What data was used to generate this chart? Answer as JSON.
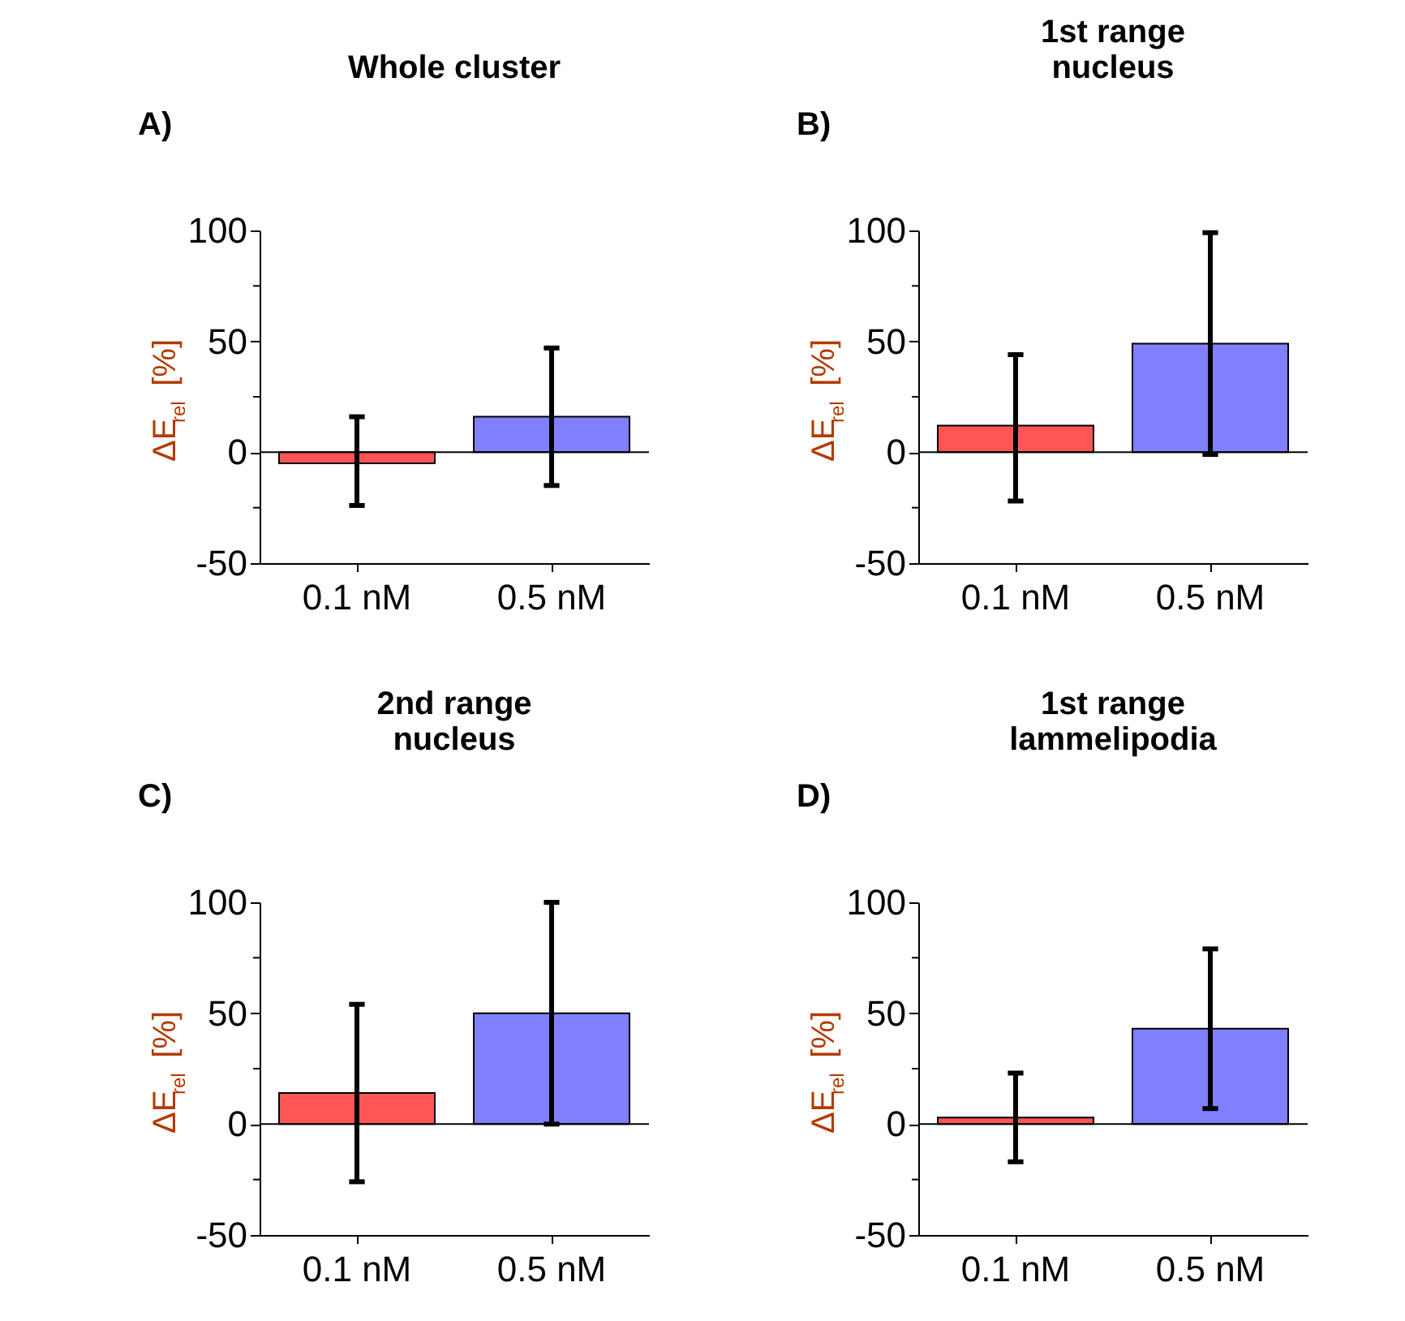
{
  "chart_data": [
    {
      "type": "bar",
      "title": "Whole cluster",
      "annotations": [
        "A)"
      ],
      "ylabel": "ΔE$_{rel}$ [%]",
      "categories": [
        "0.1 nM",
        "0.5 nM"
      ],
      "values": [
        -5,
        16
      ],
      "colors": [
        "#ff5555",
        "#8080ff"
      ],
      "errors": [
        [
          -24,
          16
        ],
        [
          -15,
          47
        ]
      ],
      "ylim": [
        -50,
        100
      ],
      "yticks": [
        -50,
        {
          "value": -25,
          "label": null
        },
        0,
        {
          "value": 25,
          "label": null
        },
        50,
        {
          "value": 75,
          "label": null
        },
        100
      ],
      "ref_lines": [
        {
          "axis": "y",
          "value": 0
        }
      ]
    },
    {
      "type": "bar",
      "title": "1st range\nnucleus",
      "annotations": [
        "B)"
      ],
      "ylabel": "ΔE$_{rel}$ [%]",
      "categories": [
        "0.1 nM",
        "0.5 nM"
      ],
      "values": [
        12,
        49
      ],
      "colors": [
        "#ff5555",
        "#8080ff"
      ],
      "errors": [
        [
          -22,
          44
        ],
        [
          -1,
          99
        ]
      ],
      "ylim": [
        -50,
        100
      ],
      "yticks": [
        -50,
        {
          "value": -25,
          "label": null
        },
        0,
        {
          "value": 25,
          "label": null
        },
        50,
        {
          "value": 75,
          "label": null
        },
        100
      ],
      "ref_lines": [
        {
          "axis": "y",
          "value": 0
        }
      ]
    },
    {
      "type": "bar",
      "title": "2nd range\nnucleus",
      "annotations": [
        "C)"
      ],
      "ylabel": "ΔE$_{rel}$ [%]",
      "categories": [
        "0.1 nM",
        "0.5 nM"
      ],
      "values": [
        14,
        50
      ],
      "colors": [
        "#ff5555",
        "#8080ff"
      ],
      "errors": [
        [
          -26,
          54
        ],
        [
          0,
          100
        ]
      ],
      "ylim": [
        -50,
        100
      ],
      "yticks": [
        -50,
        {
          "value": -25,
          "label": null
        },
        0,
        {
          "value": 25,
          "label": null
        },
        50,
        {
          "value": 75,
          "label": null
        },
        100
      ],
      "ref_lines": [
        {
          "axis": "y",
          "value": 0
        }
      ]
    },
    {
      "type": "bar",
      "title": "1st range\nlammelipodia",
      "annotations": [
        "D)"
      ],
      "ylabel": "ΔE$_{rel}$ [%]",
      "categories": [
        "0.1 nM",
        "0.5 nM"
      ],
      "values": [
        3,
        43
      ],
      "colors": [
        "#ff5555",
        "#8080ff"
      ],
      "errors": [
        [
          -17,
          23
        ],
        [
          7,
          79
        ]
      ],
      "ylim": [
        -50,
        100
      ],
      "yticks": [
        -50,
        {
          "value": -25,
          "label": null
        },
        0,
        {
          "value": 25,
          "label": null
        },
        50,
        {
          "value": 75,
          "label": null
        },
        100
      ],
      "ref_lines": [
        {
          "axis": "y",
          "value": 0
        }
      ]
    }
  ]
}
